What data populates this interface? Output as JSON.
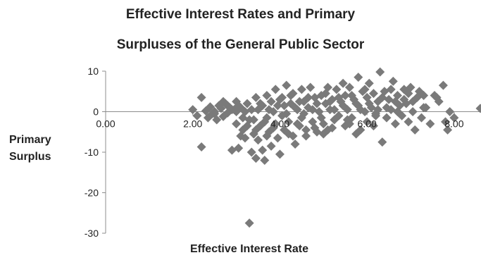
{
  "chart_data": {
    "type": "scatter",
    "title_lines": [
      "Effective Interest Rates and Primary",
      "Surpluses of the General Public Sector"
    ],
    "xlabel": "Effective Interest Rate",
    "ylabel_lines": [
      "Primary",
      "Surplus"
    ],
    "x_ticks": [
      "0.00",
      "2.00",
      "4.00",
      "6.00",
      "8.00"
    ],
    "y_ticks": [
      "10",
      "0",
      "-10",
      "-20",
      "-30"
    ],
    "xlim": [
      0,
      8.6
    ],
    "ylim": [
      -30,
      10
    ],
    "grid": false,
    "legend": "none",
    "marker_color": "#7a7a7a",
    "axis_color": "#8c8c8c",
    "points": [
      [
        2.0,
        0.5
      ],
      [
        2.1,
        -1.0
      ],
      [
        2.2,
        3.5
      ],
      [
        2.2,
        -8.7
      ],
      [
        2.3,
        0.2
      ],
      [
        2.35,
        -1.5
      ],
      [
        2.4,
        1.2
      ],
      [
        2.45,
        -0.5
      ],
      [
        2.5,
        0.0
      ],
      [
        2.55,
        -2.0
      ],
      [
        2.6,
        1.5
      ],
      [
        2.65,
        0.8
      ],
      [
        2.7,
        -1.2
      ],
      [
        2.75,
        2.0
      ],
      [
        2.8,
        -0.3
      ],
      [
        2.85,
        1.0
      ],
      [
        2.9,
        -9.5
      ],
      [
        2.95,
        0.5
      ],
      [
        3.0,
        2.5
      ],
      [
        3.0,
        -3.0
      ],
      [
        3.05,
        -9.0
      ],
      [
        3.1,
        1.0
      ],
      [
        3.15,
        -4.5
      ],
      [
        3.2,
        0.0
      ],
      [
        3.2,
        -6.5
      ],
      [
        3.25,
        2.0
      ],
      [
        3.3,
        -2.0
      ],
      [
        3.3,
        -27.5
      ],
      [
        3.35,
        -10.0
      ],
      [
        3.4,
        -5.5
      ],
      [
        3.45,
        3.5
      ],
      [
        3.45,
        -11.5
      ],
      [
        3.5,
        0.5
      ],
      [
        3.5,
        -7.0
      ],
      [
        3.55,
        -3.5
      ],
      [
        3.6,
        1.5
      ],
      [
        3.6,
        -9.5
      ],
      [
        3.65,
        -12.0
      ],
      [
        3.7,
        -1.5
      ],
      [
        3.7,
        4.0
      ],
      [
        3.75,
        -5.0
      ],
      [
        3.8,
        2.5
      ],
      [
        3.8,
        -8.5
      ],
      [
        3.85,
        0.0
      ],
      [
        3.9,
        -3.0
      ],
      [
        3.9,
        5.5
      ],
      [
        3.95,
        -6.5
      ],
      [
        4.0,
        3.0
      ],
      [
        4.0,
        -10.5
      ],
      [
        4.05,
        -1.0
      ],
      [
        4.1,
        1.5
      ],
      [
        4.1,
        -4.5
      ],
      [
        4.15,
        6.5
      ],
      [
        4.2,
        -2.5
      ],
      [
        4.25,
        2.0
      ],
      [
        4.3,
        -6.0
      ],
      [
        4.3,
        4.5
      ],
      [
        4.35,
        -8.0
      ],
      [
        4.4,
        0.5
      ],
      [
        4.45,
        -3.5
      ],
      [
        4.5,
        5.5
      ],
      [
        4.5,
        -1.5
      ],
      [
        4.55,
        2.5
      ],
      [
        4.6,
        -4.5
      ],
      [
        4.65,
        1.0
      ],
      [
        4.7,
        6.0
      ],
      [
        4.75,
        -2.5
      ],
      [
        4.8,
        3.5
      ],
      [
        4.85,
        -5.0
      ],
      [
        4.9,
        0.0
      ],
      [
        4.95,
        4.0
      ],
      [
        5.0,
        -3.0
      ],
      [
        5.05,
        2.0
      ],
      [
        5.1,
        6.0
      ],
      [
        5.1,
        -4.5
      ],
      [
        5.15,
        0.5
      ],
      [
        5.2,
        3.0
      ],
      [
        5.25,
        -2.0
      ],
      [
        5.3,
        5.5
      ],
      [
        5.35,
        -1.0
      ],
      [
        5.4,
        2.5
      ],
      [
        5.45,
        7.0
      ],
      [
        5.5,
        -3.5
      ],
      [
        5.5,
        4.0
      ],
      [
        5.55,
        0.5
      ],
      [
        5.6,
        6.0
      ],
      [
        5.65,
        -1.5
      ],
      [
        5.7,
        3.0
      ],
      [
        5.75,
        -5.5
      ],
      [
        5.8,
        8.5
      ],
      [
        5.8,
        1.5
      ],
      [
        5.85,
        -4.5
      ],
      [
        5.9,
        5.0
      ],
      [
        5.95,
        0.0
      ],
      [
        6.0,
        3.5
      ],
      [
        6.0,
        -2.5
      ],
      [
        6.05,
        7.0
      ],
      [
        6.1,
        1.0
      ],
      [
        6.15,
        4.5
      ],
      [
        6.2,
        -0.5
      ],
      [
        6.25,
        2.5
      ],
      [
        6.3,
        9.8
      ],
      [
        6.35,
        -7.5
      ],
      [
        6.4,
        5.0
      ],
      [
        6.45,
        -1.5
      ],
      [
        6.5,
        3.0
      ],
      [
        6.55,
        0.5
      ],
      [
        6.6,
        7.5
      ],
      [
        6.65,
        -3.0
      ],
      [
        6.7,
        4.0
      ],
      [
        6.75,
        1.5
      ],
      [
        6.8,
        -1.0
      ],
      [
        6.85,
        5.5
      ],
      [
        6.9,
        2.0
      ],
      [
        6.95,
        -2.5
      ],
      [
        7.0,
        6.0
      ],
      [
        7.05,
        0.0
      ],
      [
        7.1,
        -4.5
      ],
      [
        7.15,
        3.5
      ],
      [
        7.2,
        5.0
      ],
      [
        7.25,
        -1.5
      ],
      [
        7.3,
        4.0
      ],
      [
        7.35,
        1.0
      ],
      [
        7.45,
        -3.0
      ],
      [
        7.55,
        4.0
      ],
      [
        7.65,
        2.5
      ],
      [
        7.75,
        6.5
      ],
      [
        7.8,
        -2.5
      ],
      [
        7.85,
        -4.5
      ],
      [
        7.9,
        0.0
      ],
      [
        8.0,
        -1.5
      ],
      [
        8.6,
        0.8
      ],
      [
        2.5,
        -0.5
      ],
      [
        2.9,
        0.5
      ],
      [
        3.05,
        1.5
      ],
      [
        3.15,
        -1.5
      ],
      [
        3.35,
        0.5
      ],
      [
        3.55,
        2.0
      ],
      [
        3.65,
        -2.5
      ],
      [
        3.75,
        0.5
      ],
      [
        3.95,
        1.5
      ],
      [
        4.05,
        3.5
      ],
      [
        4.15,
        -0.5
      ],
      [
        4.25,
        4.0
      ],
      [
        4.35,
        1.0
      ],
      [
        4.45,
        2.5
      ],
      [
        4.55,
        -0.5
      ],
      [
        4.65,
        3.5
      ],
      [
        4.75,
        0.5
      ],
      [
        4.85,
        2.0
      ],
      [
        4.95,
        -1.5
      ],
      [
        5.05,
        4.5
      ],
      [
        5.15,
        2.5
      ],
      [
        5.25,
        0.5
      ],
      [
        5.35,
        3.5
      ],
      [
        5.45,
        1.5
      ],
      [
        5.55,
        -2.0
      ],
      [
        5.65,
        4.0
      ],
      [
        5.75,
        2.0
      ],
      [
        5.85,
        0.5
      ],
      [
        5.95,
        5.5
      ],
      [
        6.05,
        2.0
      ],
      [
        6.15,
        -3.5
      ],
      [
        6.25,
        0.5
      ],
      [
        6.35,
        3.5
      ],
      [
        6.45,
        1.0
      ],
      [
        6.55,
        5.5
      ],
      [
        6.65,
        2.5
      ],
      [
        6.75,
        -0.5
      ],
      [
        6.85,
        3.0
      ],
      [
        6.95,
        4.5
      ],
      [
        7.05,
        2.5
      ],
      [
        3.25,
        -3.5
      ],
      [
        3.45,
        -4.5
      ],
      [
        3.85,
        -4.0
      ],
      [
        4.2,
        -5.5
      ],
      [
        4.6,
        -6.0
      ],
      [
        5.0,
        -5.5
      ],
      [
        3.1,
        -6.0
      ],
      [
        3.4,
        -2.0
      ],
      [
        3.7,
        -6.0
      ],
      [
        4.4,
        -3.0
      ],
      [
        4.8,
        -4.0
      ],
      [
        5.2,
        -4.0
      ],
      [
        5.6,
        -3.0
      ],
      [
        6.2,
        -1.0
      ],
      [
        6.7,
        0.0
      ],
      [
        7.3,
        1.0
      ],
      [
        7.6,
        3.5
      ],
      [
        2.7,
        2.5
      ],
      [
        2.8,
        1.5
      ],
      [
        3.0,
        0.0
      ]
    ]
  }
}
